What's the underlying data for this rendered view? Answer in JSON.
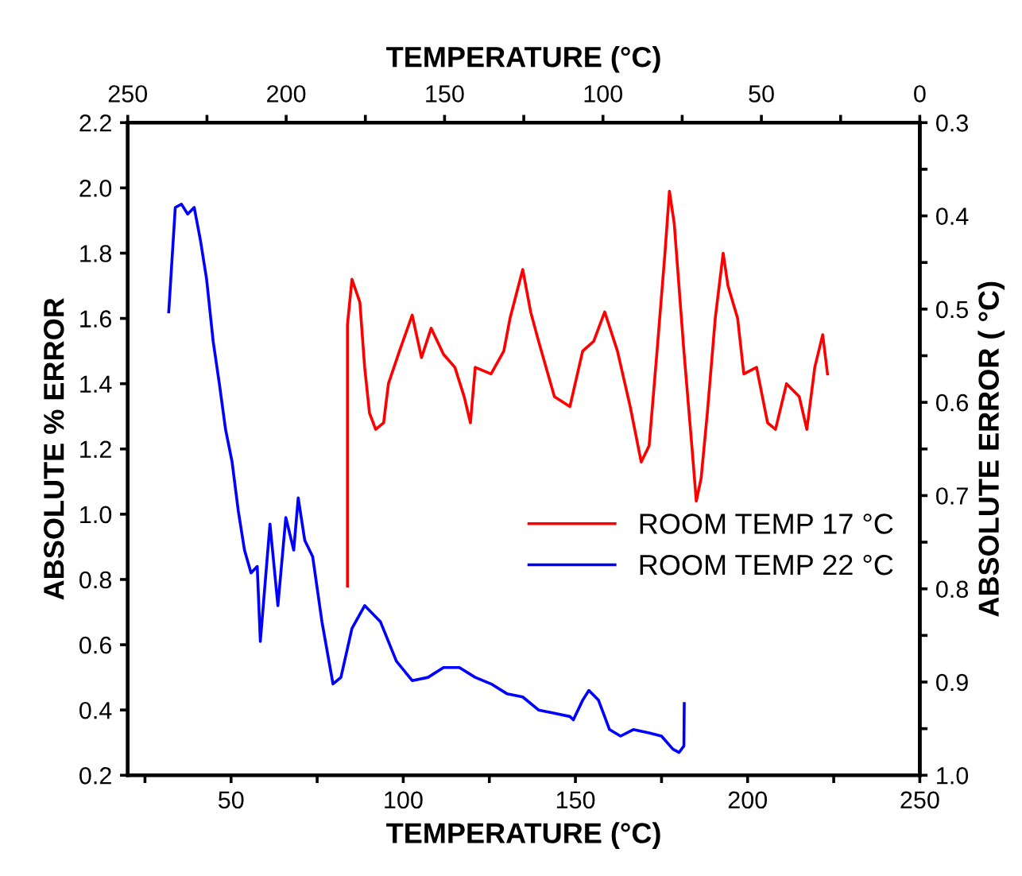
{
  "chart_data": {
    "type": "line",
    "xlabel": "TEMPERATURE (°C)",
    "ylabel": "ABSOLUTE % ERROR",
    "y2label": "ABSOLUTE ERROR ( °C)",
    "x2label": "TEMPERATURE (°C)",
    "xlim": [
      20,
      250
    ],
    "xticks": [
      {
        "value": 25,
        "label": null
      },
      50,
      {
        "value": 75,
        "label": null
      },
      100,
      {
        "value": 125,
        "label": null
      },
      150,
      {
        "value": 175,
        "label": null
      },
      200,
      {
        "value": 225,
        "label": null
      },
      250
    ],
    "ylim": [
      0.2,
      2.2
    ],
    "yticks": [
      0.2,
      0.4,
      0.6,
      0.8,
      {
        "value": 1,
        "label": "1.0"
      },
      1.2,
      1.4,
      1.6,
      1.8,
      {
        "value": 2,
        "label": "2.0"
      },
      2.2
    ],
    "y2lim": [
      1.0,
      0.3
    ],
    "y2ticks": [
      {
        "value": 1,
        "label": "1.0"
      },
      {
        "value": 0.95,
        "label": null
      },
      0.9,
      {
        "value": 0.85,
        "label": null
      },
      0.8,
      {
        "value": 0.75,
        "label": null
      },
      0.7,
      {
        "value": 0.65,
        "label": null
      },
      0.6,
      {
        "value": 0.55,
        "label": null
      },
      0.5,
      {
        "value": 0.45,
        "label": null
      },
      0.4,
      {
        "value": 0.35,
        "label": null
      },
      0.3
    ],
    "x2lim": [
      250,
      0
    ],
    "x2ticks": [
      250,
      {
        "value": 225,
        "label": null
      },
      200,
      {
        "value": 175,
        "label": null
      },
      150,
      {
        "value": 125,
        "label": null
      },
      100,
      {
        "value": 75,
        "label": null
      },
      50,
      {
        "value": 25,
        "label": null
      },
      0
    ],
    "grid": false,
    "legend": "right",
    "marker": "none",
    "line_style": "solid",
    "series": [
      {
        "name": "ROOM TEMP 17 °C",
        "color": "#ff0000",
        "x": [
          83.8,
          83.8,
          85.1,
          87.4,
          88.8,
          90.2,
          92.0,
          94.3,
          95.7,
          98.9,
          102.6,
          105.3,
          108.1,
          111.7,
          115.0,
          117.7,
          119.5,
          120.9,
          125.5,
          129.2,
          131.0,
          134.7,
          137.0,
          139.3,
          143.9,
          148.4,
          152.1,
          155.3,
          158.5,
          162.2,
          165.9,
          169.1,
          171.4,
          173.7,
          176.0,
          177.3,
          178.7,
          181.5,
          183.8,
          185.1,
          186.5,
          188.3,
          190.6,
          192.9,
          194.3,
          197.1,
          198.9,
          202.6,
          205.8,
          208.1,
          211.3,
          215.0,
          217.2,
          219.5,
          221.8,
          223.2
        ],
        "values": [
          0.78,
          1.58,
          1.72,
          1.65,
          1.45,
          1.31,
          1.26,
          1.28,
          1.4,
          1.5,
          1.61,
          1.48,
          1.57,
          1.49,
          1.45,
          1.36,
          1.28,
          1.45,
          1.43,
          1.5,
          1.6,
          1.75,
          1.62,
          1.53,
          1.36,
          1.33,
          1.5,
          1.53,
          1.62,
          1.5,
          1.33,
          1.16,
          1.21,
          1.5,
          1.8,
          1.99,
          1.89,
          1.5,
          1.21,
          1.04,
          1.11,
          1.31,
          1.6,
          1.8,
          1.7,
          1.6,
          1.43,
          1.45,
          1.28,
          1.26,
          1.4,
          1.36,
          1.26,
          1.45,
          1.55,
          1.43
        ]
      },
      {
        "name": "ROOM TEMP 22 °C",
        "color": "#0000ff",
        "x": [
          31.9,
          33.8,
          35.6,
          37.4,
          39.3,
          41.1,
          42.9,
          44.8,
          46.6,
          48.4,
          50.3,
          52.1,
          53.9,
          55.8,
          57.6,
          58.5,
          61.3,
          63.6,
          65.9,
          68.2,
          69.5,
          71.4,
          73.7,
          76.4,
          79.6,
          81.9,
          85.1,
          88.8,
          93.4,
          98.0,
          102.6,
          107.2,
          111.7,
          116.3,
          120.9,
          125.5,
          130.1,
          134.7,
          139.3,
          143.9,
          148.4,
          149.4,
          152.1,
          153.9,
          156.7,
          159.9,
          163.1,
          166.8,
          171.4,
          175.0,
          178.3,
          180.1,
          181.5,
          181.6
        ],
        "values": [
          1.62,
          1.94,
          1.95,
          1.92,
          1.94,
          1.84,
          1.72,
          1.53,
          1.4,
          1.26,
          1.16,
          1.01,
          0.89,
          0.82,
          0.84,
          0.61,
          0.97,
          0.72,
          0.99,
          0.89,
          1.05,
          0.92,
          0.87,
          0.67,
          0.48,
          0.5,
          0.65,
          0.72,
          0.67,
          0.55,
          0.49,
          0.5,
          0.53,
          0.53,
          0.5,
          0.48,
          0.45,
          0.44,
          0.4,
          0.39,
          0.38,
          0.37,
          0.43,
          0.46,
          0.43,
          0.34,
          0.32,
          0.34,
          0.33,
          0.32,
          0.28,
          0.27,
          0.29,
          0.42
        ]
      }
    ]
  }
}
